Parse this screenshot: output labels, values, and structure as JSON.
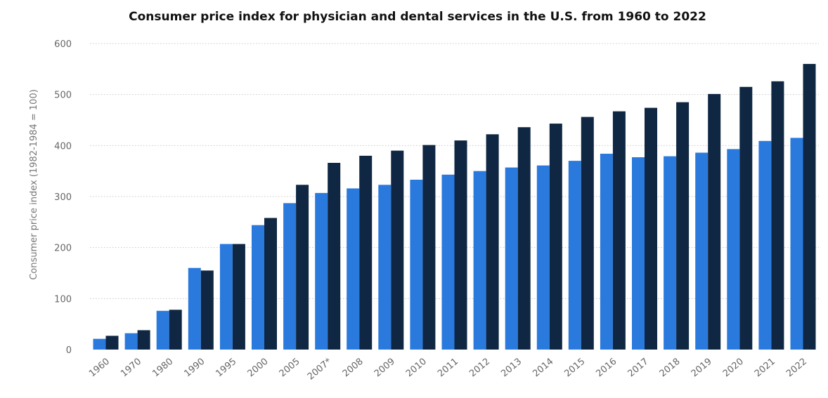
{
  "chart_data": {
    "type": "bar",
    "title": "Consumer price index for physician and dental services in the U.S. from 1960 to 2022",
    "xlabel": "",
    "ylabel": "Consumer price index (1982-1984 = 100)",
    "ylim": [
      0,
      600
    ],
    "yticks": [
      "0",
      "100",
      "200",
      "300",
      "400",
      "500",
      "600"
    ],
    "grid": true,
    "categories": [
      "1960",
      "1970",
      "1980",
      "1990",
      "1995",
      "2000",
      "2005",
      "2007*",
      "2008",
      "2009",
      "2010",
      "2011",
      "2012",
      "2013",
      "2014",
      "2015",
      "2016",
      "2017",
      "2018",
      "2019",
      "2020",
      "2021",
      "2022"
    ],
    "series": [
      {
        "color": "#2a7ade",
        "values": [
          21,
          32,
          76,
          160,
          207,
          244,
          287,
          307,
          316,
          323,
          333,
          343,
          350,
          357,
          361,
          370,
          384,
          377,
          379,
          386,
          393,
          409,
          415
        ]
      },
      {
        "color": "#0f2742",
        "values": [
          27,
          38,
          78,
          155,
          207,
          258,
          323,
          366,
          380,
          390,
          401,
          410,
          422,
          436,
          443,
          456,
          467,
          474,
          485,
          501,
          515,
          526,
          560
        ]
      }
    ]
  }
}
